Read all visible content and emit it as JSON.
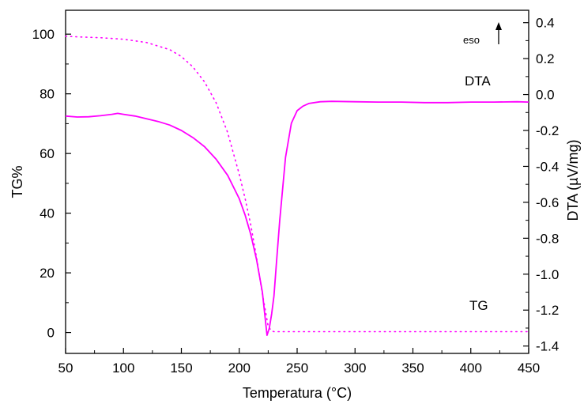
{
  "chart_data": {
    "type": "line",
    "xlabel": "Temperatura (°C)",
    "ylabel_left": "TG%",
    "ylabel_right": "DTA (µV/mg)",
    "xlim": [
      50,
      450
    ],
    "ylim_left": [
      -7,
      108
    ],
    "ylim_right": [
      -1.441,
      0.469
    ],
    "x_ticks": [
      "50",
      "100",
      "150",
      "200",
      "250",
      "300",
      "350",
      "400",
      "450"
    ],
    "y_left_ticks": [
      "0",
      "20",
      "40",
      "60",
      "80",
      "100"
    ],
    "y_right_ticks": [
      "0.4",
      "0.2",
      "0.0",
      "-0.2",
      "-0.4",
      "-0.6",
      "-0.8",
      "-1.0",
      "-1.2",
      "-1.4"
    ],
    "grid": false,
    "colors": {
      "series": "#ff00ff",
      "axis": "#000000"
    },
    "annotations": {
      "dta_label": "DTA",
      "tg_label": "TG",
      "eso_label": "eso"
    },
    "series": [
      {
        "name": "TG",
        "axis": "left",
        "style": "dotted",
        "x": [
          50,
          60,
          80,
          100,
          120,
          140,
          150,
          160,
          170,
          180,
          190,
          200,
          205,
          210,
          215,
          220,
          225,
          228,
          230,
          240,
          260,
          280,
          300,
          350,
          400,
          450
        ],
        "y": [
          99.3,
          99.1,
          98.8,
          98.3,
          97.2,
          94.8,
          92.5,
          89.0,
          84.0,
          77.0,
          67.0,
          53.0,
          45.0,
          36.0,
          25.0,
          13.0,
          2.0,
          0.5,
          0.3,
          0.3,
          0.3,
          0.3,
          0.3,
          0.3,
          0.3,
          0.3
        ]
      },
      {
        "name": "DTA",
        "axis": "right",
        "style": "solid",
        "x": [
          50,
          60,
          70,
          80,
          90,
          95,
          100,
          110,
          120,
          130,
          140,
          150,
          160,
          170,
          180,
          190,
          200,
          205,
          210,
          215,
          220,
          224,
          226,
          228,
          230,
          232,
          235,
          240,
          245,
          250,
          255,
          260,
          270,
          280,
          300,
          320,
          340,
          360,
          380,
          400,
          420,
          440,
          450
        ],
        "y": [
          -0.12,
          -0.125,
          -0.124,
          -0.118,
          -0.11,
          -0.105,
          -0.11,
          -0.12,
          -0.135,
          -0.15,
          -0.17,
          -0.2,
          -0.24,
          -0.29,
          -0.36,
          -0.45,
          -0.58,
          -0.67,
          -0.78,
          -0.92,
          -1.1,
          -1.34,
          -1.3,
          -1.22,
          -1.12,
          -0.95,
          -0.7,
          -0.35,
          -0.16,
          -0.09,
          -0.065,
          -0.05,
          -0.04,
          -0.038,
          -0.04,
          -0.042,
          -0.042,
          -0.045,
          -0.045,
          -0.042,
          -0.042,
          -0.04,
          -0.042
        ]
      }
    ]
  }
}
